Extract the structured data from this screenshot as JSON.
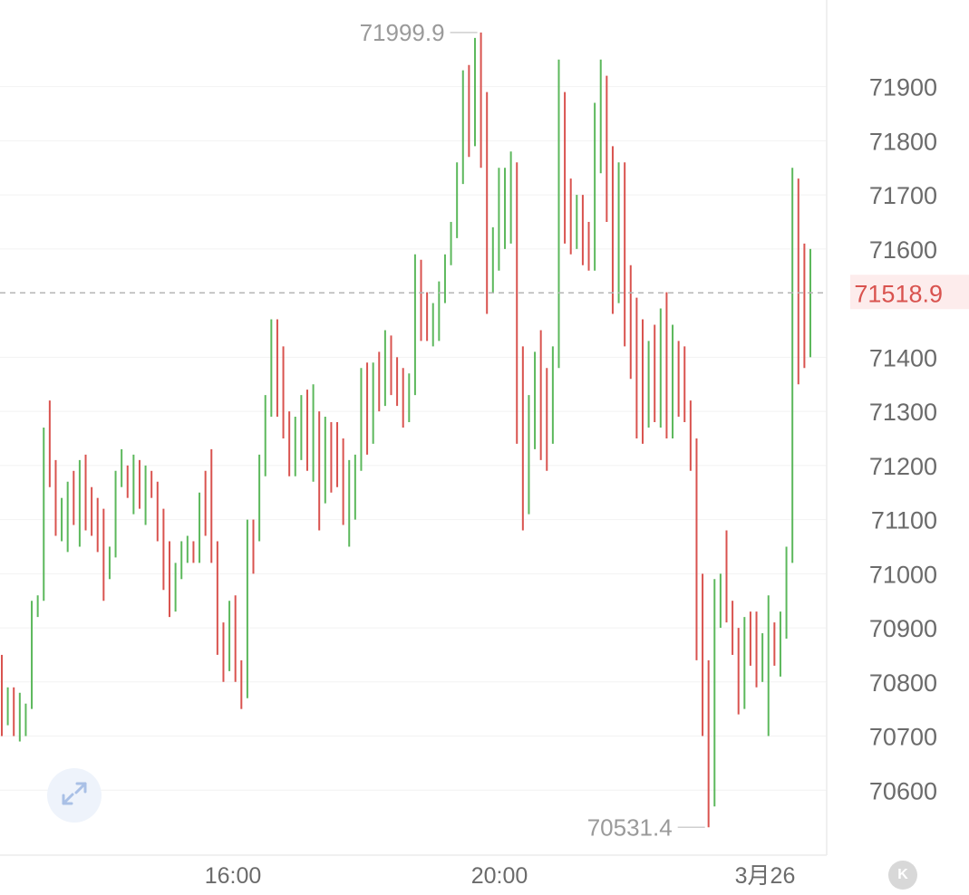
{
  "chart_data": {
    "type": "ohlc",
    "ylim": [
      70480,
      72060
    ],
    "y_ticks": [
      71900,
      71800,
      71700,
      71600,
      71400,
      71300,
      71200,
      71100,
      71000,
      70900,
      70800,
      70700,
      70600
    ],
    "x_labels": [
      "16:00",
      "20:00",
      "3月26"
    ],
    "current_price": "71518.9",
    "current_price_value": 71518.9,
    "high_label": "71999.9",
    "low_label": "70531.4",
    "grid": true,
    "colors": {
      "up": "#5cb85c",
      "down": "#d9534f",
      "label_up": "#d9534f",
      "current_label_bg": "#fdecec",
      "current_label_text": "#d9534f",
      "current_line": "#b5b5b5"
    },
    "series_note": "",
    "bars": [
      [
        70850,
        70850,
        70700,
        70760
      ],
      [
        70760,
        70790,
        70720,
        70760
      ],
      [
        70740,
        70790,
        70700,
        70720
      ],
      [
        70700,
        70780,
        70690,
        70720
      ],
      [
        70710,
        70760,
        70700,
        70750
      ],
      [
        70750,
        70950,
        70750,
        70930
      ],
      [
        70930,
        70960,
        70920,
        70950
      ],
      [
        70950,
        71270,
        70950,
        71250
      ],
      [
        71250,
        71320,
        71160,
        71200
      ],
      [
        71200,
        71210,
        71070,
        71090
      ],
      [
        71080,
        71140,
        71060,
        71120
      ],
      [
        71120,
        71170,
        71040,
        71150
      ],
      [
        71150,
        71190,
        71090,
        71100
      ],
      [
        71110,
        71210,
        71050,
        71170
      ],
      [
        71160,
        71220,
        71080,
        71100
      ],
      [
        71100,
        71160,
        71070,
        71090
      ],
      [
        71090,
        71140,
        71040,
        71050
      ],
      [
        71050,
        71120,
        70950,
        71000
      ],
      [
        71000,
        71050,
        70990,
        71040
      ],
      [
        71040,
        71190,
        71030,
        71180
      ],
      [
        71180,
        71230,
        71160,
        71190
      ],
      [
        71190,
        71200,
        71140,
        71150
      ],
      [
        71150,
        71220,
        71110,
        71200
      ],
      [
        71200,
        71210,
        71120,
        71140
      ],
      [
        71140,
        71200,
        71090,
        71180
      ],
      [
        71180,
        71190,
        71140,
        71150
      ],
      [
        71150,
        71170,
        71060,
        71100
      ],
      [
        71100,
        71120,
        70970,
        71050
      ],
      [
        71050,
        71060,
        70920,
        70940
      ],
      [
        70940,
        71020,
        70930,
        71010
      ],
      [
        71010,
        71060,
        70990,
        71040
      ],
      [
        71040,
        71070,
        71020,
        71050
      ],
      [
        71050,
        71060,
        71020,
        71040
      ],
      [
        71040,
        71150,
        71020,
        71130
      ],
      [
        71130,
        71190,
        71070,
        71100
      ],
      [
        71100,
        71230,
        71020,
        71050
      ],
      [
        71050,
        71060,
        70850,
        70880
      ],
      [
        70880,
        70910,
        70800,
        70830
      ],
      [
        70830,
        70950,
        70820,
        70920
      ],
      [
        70920,
        70960,
        70800,
        70820
      ],
      [
        70820,
        70840,
        70750,
        70780
      ],
      [
        70780,
        71100,
        70770,
        71090
      ],
      [
        71090,
        71100,
        71000,
        71080
      ],
      [
        71080,
        71220,
        71060,
        71200
      ],
      [
        71200,
        71330,
        71180,
        71310
      ],
      [
        71310,
        71470,
        71290,
        71460
      ],
      [
        71460,
        71470,
        71290,
        71320
      ],
      [
        71320,
        71420,
        71250,
        71280
      ],
      [
        71280,
        71300,
        71180,
        71230
      ],
      [
        71230,
        71290,
        71180,
        71250
      ],
      [
        71250,
        71330,
        71210,
        71280
      ],
      [
        71280,
        71340,
        71190,
        71220
      ],
      [
        71220,
        71350,
        71170,
        71300
      ],
      [
        71300,
        71300,
        71080,
        71160
      ],
      [
        71160,
        71290,
        71130,
        71260
      ],
      [
        71260,
        71280,
        71150,
        71240
      ],
      [
        71240,
        71280,
        71160,
        71200
      ],
      [
        71200,
        71250,
        71090,
        71150
      ],
      [
        71150,
        71210,
        71050,
        71180
      ],
      [
        71180,
        71220,
        71100,
        71200
      ],
      [
        71200,
        71380,
        71190,
        71370
      ],
      [
        71370,
        71390,
        71220,
        71260
      ],
      [
        71260,
        71390,
        71240,
        71360
      ],
      [
        71360,
        71410,
        71300,
        71330
      ],
      [
        71330,
        71450,
        71310,
        71420
      ],
      [
        71420,
        71440,
        71330,
        71390
      ],
      [
        71390,
        71400,
        71310,
        71340
      ],
      [
        71340,
        71380,
        71270,
        71290
      ],
      [
        71290,
        71370,
        71280,
        71350
      ],
      [
        71350,
        71590,
        71330,
        71570
      ],
      [
        71570,
        71580,
        71430,
        71490
      ],
      [
        71490,
        71520,
        71430,
        71450
      ],
      [
        71450,
        71500,
        71420,
        71480
      ],
      [
        71480,
        71540,
        71430,
        71520
      ],
      [
        71520,
        71590,
        71500,
        71580
      ],
      [
        71580,
        71650,
        71570,
        71640
      ],
      [
        71640,
        71760,
        71620,
        71750
      ],
      [
        71750,
        71930,
        71720,
        71880
      ],
      [
        71880,
        71940,
        71770,
        71800
      ],
      [
        71800,
        71990,
        71790,
        71960
      ],
      [
        71960,
        71999.9,
        71750,
        71790
      ],
      [
        71790,
        71890,
        71480,
        71560
      ],
      [
        71560,
        71640,
        71520,
        71620
      ],
      [
        71620,
        71750,
        71560,
        71660
      ],
      [
        71660,
        71750,
        71600,
        71700
      ],
      [
        71700,
        71780,
        71610,
        71720
      ],
      [
        71720,
        71760,
        71240,
        71270
      ],
      [
        71270,
        71420,
        71080,
        71140
      ],
      [
        71140,
        71330,
        71110,
        71320
      ],
      [
        71320,
        71410,
        71230,
        71370
      ],
      [
        71370,
        71450,
        71210,
        71290
      ],
      [
        71290,
        71380,
        71190,
        71250
      ],
      [
        71250,
        71420,
        71240,
        71400
      ],
      [
        71400,
        71950,
        71380,
        71890
      ],
      [
        71890,
        71860,
        71610,
        71700
      ],
      [
        71700,
        71730,
        71590,
        71650
      ],
      [
        71650,
        71700,
        71600,
        71680
      ],
      [
        71680,
        71700,
        71570,
        71620
      ],
      [
        71620,
        71650,
        71560,
        71580
      ],
      [
        71580,
        71870,
        71560,
        71840
      ],
      [
        71840,
        71950,
        71740,
        71920
      ],
      [
        71920,
        71920,
        71650,
        71680
      ],
      [
        71680,
        71790,
        71480,
        71520
      ],
      [
        71520,
        71760,
        71500,
        71730
      ],
      [
        71730,
        71760,
        71420,
        71440
      ],
      [
        71440,
        71570,
        71360,
        71390
      ],
      [
        71390,
        71510,
        71250,
        71300
      ],
      [
        71300,
        71470,
        71240,
        71290
      ],
      [
        71290,
        71430,
        71270,
        71410
      ],
      [
        71410,
        71460,
        71280,
        71300
      ],
      [
        71300,
        71490,
        71270,
        71420
      ],
      [
        71420,
        71520,
        71250,
        71270
      ],
      [
        71270,
        71460,
        71250,
        71430
      ],
      [
        71430,
        71410,
        71290,
        71340
      ],
      [
        71340,
        71420,
        71280,
        71320
      ],
      [
        71320,
        71270,
        71190,
        71230
      ],
      [
        71230,
        71250,
        70840,
        70860
      ],
      [
        70860,
        71000,
        70700,
        70740
      ],
      [
        70740,
        70840,
        70531.4,
        70570
      ],
      [
        70570,
        70990,
        70670,
        70960
      ],
      [
        70960,
        71000,
        70900,
        70960
      ],
      [
        70960,
        71080,
        70910,
        70930
      ],
      [
        70930,
        70950,
        70850,
        70870
      ],
      [
        70870,
        70900,
        70740,
        70800
      ],
      [
        70800,
        70920,
        70750,
        70890
      ],
      [
        70890,
        70930,
        70830,
        70840
      ],
      [
        70840,
        70930,
        70790,
        70810
      ],
      [
        70810,
        70890,
        70800,
        70850
      ],
      [
        70850,
        70960,
        70700,
        70900
      ],
      [
        70900,
        70910,
        70830,
        70840
      ],
      [
        70840,
        70930,
        70810,
        70890
      ],
      [
        70890,
        71050,
        70880,
        71030
      ],
      [
        71030,
        71750,
        71020,
        71730
      ],
      [
        71730,
        71510,
        71350,
        71500
      ],
      [
        71500,
        71610,
        71380,
        71400
      ],
      [
        71400,
        71600,
        71500,
        71520
      ]
    ]
  },
  "ui": {
    "expand_icon": "expand-arrows-icon",
    "k_button_label": "K"
  }
}
